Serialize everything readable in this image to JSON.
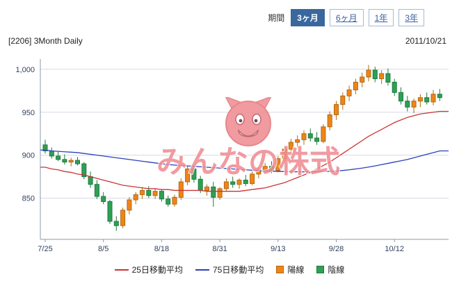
{
  "header": {
    "period_label": "期間",
    "periods": [
      {
        "label": "3ヶ月",
        "selected": true
      },
      {
        "label": "6ヶ月",
        "selected": false
      },
      {
        "label": "1年",
        "selected": false
      },
      {
        "label": "3年",
        "selected": false
      }
    ],
    "title": "[2206] 3Month Daily",
    "date": "2011/10/21"
  },
  "watermark": {
    "text": "みんなの株式"
  },
  "colors": {
    "up": "#f08418",
    "up_border": "#b06a12",
    "down": "#2fa055",
    "down_border": "#1d7a3c",
    "ma25": "#cc3333",
    "ma75": "#2b3fbb",
    "grid": "#d4dae2",
    "axis": "#8a9ab0",
    "axis_text": "#2f3f5f",
    "selected_button": "#3a679e",
    "watermark_pink": "#ef8d92"
  },
  "chart_data": {
    "type": "candlestick",
    "title": "[2206] 3Month Daily",
    "date_label": "2011/10/21",
    "grid": "horizontal",
    "legend_position": "bottom",
    "ylim": [
      802,
      1012
    ],
    "y_ticks": [
      {
        "value": 850,
        "label": "850"
      },
      {
        "value": 900,
        "label": "900"
      },
      {
        "value": 950,
        "label": "950"
      },
      {
        "value": 1000,
        "label": "1,000"
      }
    ],
    "x_ticks": [
      {
        "index": 0,
        "label": "7/25"
      },
      {
        "index": 9,
        "label": "8/5"
      },
      {
        "index": 18,
        "label": "8/18"
      },
      {
        "index": 27,
        "label": "8/31"
      },
      {
        "index": 36,
        "label": "9/13"
      },
      {
        "index": 45,
        "label": "9/28"
      },
      {
        "index": 54,
        "label": "10/12"
      }
    ],
    "up_label": "陽線",
    "down_label": "陰線",
    "x": [
      "7/25",
      "7/26",
      "7/27",
      "7/28",
      "7/29",
      "8/1",
      "8/2",
      "8/3",
      "8/4",
      "8/5",
      "8/8",
      "8/9",
      "8/10",
      "8/11",
      "8/12",
      "8/15",
      "8/16",
      "8/17",
      "8/18",
      "8/19",
      "8/22",
      "8/23",
      "8/24",
      "8/25",
      "8/26",
      "8/29",
      "8/30",
      "8/31",
      "9/1",
      "9/2",
      "9/5",
      "9/6",
      "9/7",
      "9/8",
      "9/9",
      "9/12",
      "9/13",
      "9/14",
      "9/15",
      "9/16",
      "9/20",
      "9/21",
      "9/22",
      "9/26",
      "9/27",
      "9/28",
      "9/29",
      "9/30",
      "10/3",
      "10/4",
      "10/5",
      "10/6",
      "10/7",
      "10/11",
      "10/12",
      "10/13",
      "10/14",
      "10/17",
      "10/18",
      "10/19",
      "10/20",
      "10/21"
    ],
    "candles": [
      [
        912,
        918,
        902,
        905
      ],
      [
        905,
        909,
        896,
        899
      ],
      [
        899,
        904,
        893,
        895
      ],
      [
        895,
        901,
        889,
        892
      ],
      [
        892,
        897,
        887,
        894
      ],
      [
        894,
        898,
        888,
        890
      ],
      [
        890,
        892,
        872,
        875
      ],
      [
        875,
        881,
        862,
        866
      ],
      [
        866,
        871,
        849,
        852
      ],
      [
        852,
        857,
        843,
        846
      ],
      [
        846,
        848,
        820,
        823
      ],
      [
        823,
        829,
        812,
        818
      ],
      [
        818,
        839,
        815,
        836
      ],
      [
        836,
        851,
        831,
        848
      ],
      [
        848,
        857,
        843,
        854
      ],
      [
        854,
        863,
        849,
        859
      ],
      [
        859,
        864,
        850,
        853
      ],
      [
        853,
        861,
        849,
        858
      ],
      [
        858,
        860,
        846,
        849
      ],
      [
        849,
        853,
        840,
        843
      ],
      [
        843,
        854,
        840,
        851
      ],
      [
        851,
        873,
        848,
        869
      ],
      [
        869,
        888,
        865,
        884
      ],
      [
        884,
        887,
        868,
        872
      ],
      [
        872,
        876,
        856,
        859
      ],
      [
        859,
        866,
        853,
        863
      ],
      [
        863,
        869,
        840,
        851
      ],
      [
        851,
        863,
        848,
        861
      ],
      [
        861,
        873,
        858,
        869
      ],
      [
        869,
        875,
        862,
        866
      ],
      [
        866,
        873,
        861,
        871
      ],
      [
        871,
        877,
        864,
        867
      ],
      [
        867,
        881,
        865,
        878
      ],
      [
        878,
        886,
        873,
        883
      ],
      [
        883,
        891,
        878,
        887
      ],
      [
        887,
        893,
        879,
        882
      ],
      [
        882,
        899,
        880,
        896
      ],
      [
        896,
        911,
        892,
        907
      ],
      [
        907,
        919,
        903,
        915
      ],
      [
        915,
        923,
        909,
        918
      ],
      [
        918,
        929,
        912,
        925
      ],
      [
        925,
        931,
        916,
        920
      ],
      [
        920,
        927,
        912,
        916
      ],
      [
        916,
        936,
        914,
        933
      ],
      [
        933,
        951,
        929,
        947
      ],
      [
        947,
        963,
        941,
        959
      ],
      [
        959,
        973,
        953,
        969
      ],
      [
        969,
        981,
        963,
        976
      ],
      [
        976,
        989,
        971,
        985
      ],
      [
        985,
        996,
        979,
        991
      ],
      [
        991,
        1005,
        986,
        999
      ],
      [
        999,
        1003,
        985,
        989
      ],
      [
        989,
        999,
        983,
        995
      ],
      [
        995,
        1001,
        981,
        985
      ],
      [
        985,
        989,
        969,
        973
      ],
      [
        973,
        979,
        959,
        963
      ],
      [
        963,
        969,
        951,
        956
      ],
      [
        956,
        966,
        949,
        963
      ],
      [
        963,
        971,
        956,
        967
      ],
      [
        967,
        973,
        959,
        962
      ],
      [
        962,
        976,
        958,
        971
      ],
      [
        971,
        977,
        963,
        967
      ]
    ],
    "overlays": [
      {
        "name": "25日移動平均",
        "type": "line",
        "color": "#cc3333",
        "values": [
          886,
          884,
          883,
          881,
          880,
          878,
          877,
          875,
          873,
          871,
          869,
          867,
          865,
          864,
          863,
          862,
          861,
          861,
          860,
          860,
          859,
          859,
          859,
          859,
          859,
          858,
          858,
          858,
          858,
          858,
          858,
          859,
          860,
          861,
          862,
          864,
          866,
          868,
          871,
          874,
          877,
          880,
          884,
          888,
          892,
          897,
          902,
          907,
          912,
          917,
          922,
          926,
          930,
          934,
          938,
          941,
          944,
          946,
          948,
          949,
          950,
          951
        ]
      },
      {
        "name": "75日移動平均",
        "type": "line",
        "color": "#2b3fbb",
        "values": [
          906,
          905,
          904.5,
          904,
          903.5,
          903,
          902,
          901,
          900,
          899,
          898,
          897,
          896,
          895,
          894,
          893,
          892,
          891,
          890,
          889,
          888.5,
          888,
          887.5,
          887,
          886.5,
          886,
          885.5,
          885,
          884.5,
          884,
          883.5,
          883,
          882.5,
          882,
          881.7,
          881.4,
          881.2,
          881,
          880.8,
          880.7,
          880.6,
          880.6,
          880.7,
          880.9,
          881.2,
          881.6,
          882.2,
          883,
          884,
          885,
          886.2,
          887.5,
          889,
          890.5,
          892,
          893.5,
          895,
          897,
          899,
          901,
          903,
          905
        ]
      }
    ]
  }
}
